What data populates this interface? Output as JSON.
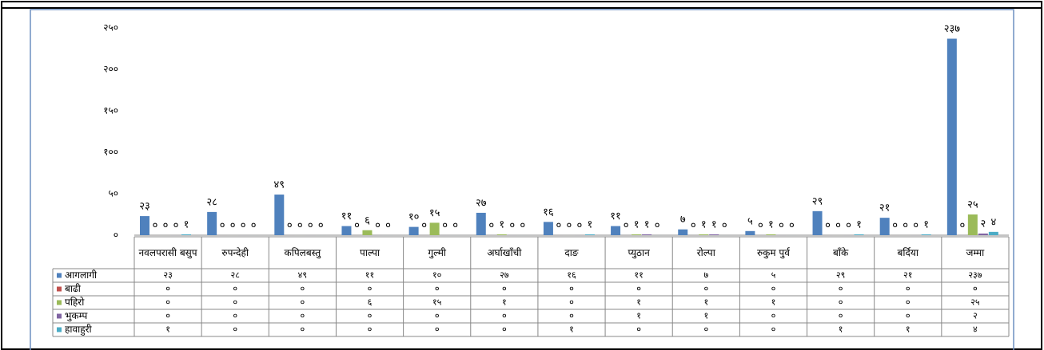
{
  "chart_data": {
    "type": "bar",
    "categories": [
      "नवलपरासी बसुप",
      "रुपन्देही",
      "कपिलबस्तु",
      "पाल्पा",
      "गुल्मी",
      "अर्घाखाँची",
      "दाङ",
      "प्युठान",
      "रोल्पा",
      "रुकुम पुर्व",
      "बाँके",
      "बर्दिया",
      "जम्मा"
    ],
    "series": [
      {
        "name": "आगलागी",
        "color": "#4f81bd",
        "values": [
          23,
          28,
          49,
          11,
          10,
          27,
          16,
          11,
          7,
          5,
          29,
          21,
          237
        ],
        "value_labels": [
          "२३",
          "२८",
          "४९",
          "११",
          "१०",
          "२७",
          "१६",
          "११",
          "७",
          "५",
          "२९",
          "२१",
          "२३७"
        ]
      },
      {
        "name": "बाढी",
        "color": "#c0504d",
        "values": [
          0,
          0,
          0,
          0,
          0,
          0,
          0,
          0,
          0,
          0,
          0,
          0,
          0
        ],
        "value_labels": [
          "०",
          "०",
          "०",
          "०",
          "०",
          "०",
          "०",
          "०",
          "०",
          "०",
          "०",
          "०",
          "०"
        ]
      },
      {
        "name": "पहिरो",
        "color": "#9bbb59",
        "values": [
          0,
          0,
          0,
          6,
          15,
          1,
          0,
          1,
          1,
          1,
          0,
          0,
          25
        ],
        "value_labels": [
          "०",
          "०",
          "०",
          "६",
          "१५",
          "१",
          "०",
          "१",
          "१",
          "१",
          "०",
          "०",
          "२५"
        ]
      },
      {
        "name": "भुकम्प",
        "color": "#8064a2",
        "values": [
          0,
          0,
          0,
          0,
          0,
          0,
          0,
          1,
          1,
          0,
          0,
          0,
          2
        ],
        "value_labels": [
          "०",
          "०",
          "०",
          "०",
          "०",
          "०",
          "०",
          "१",
          "१",
          "०",
          "०",
          "०",
          "२"
        ]
      },
      {
        "name": "हावाहुरी",
        "color": "#4bacc6",
        "values": [
          1,
          0,
          0,
          0,
          0,
          0,
          1,
          0,
          0,
          0,
          1,
          1,
          4
        ],
        "value_labels": [
          "१",
          "०",
          "०",
          "०",
          "०",
          "०",
          "१",
          "०",
          "०",
          "०",
          "१",
          "१",
          "४"
        ]
      }
    ],
    "ylim": [
      0,
      250
    ],
    "yticks": [
      {
        "value": 0,
        "label": "०"
      },
      {
        "value": 50,
        "label": "५०"
      },
      {
        "value": 100,
        "label": "१००"
      },
      {
        "value": 150,
        "label": "१५०"
      },
      {
        "value": 200,
        "label": "२००"
      },
      {
        "value": 250,
        "label": "२५०"
      }
    ],
    "grid": false,
    "data_table": true
  }
}
